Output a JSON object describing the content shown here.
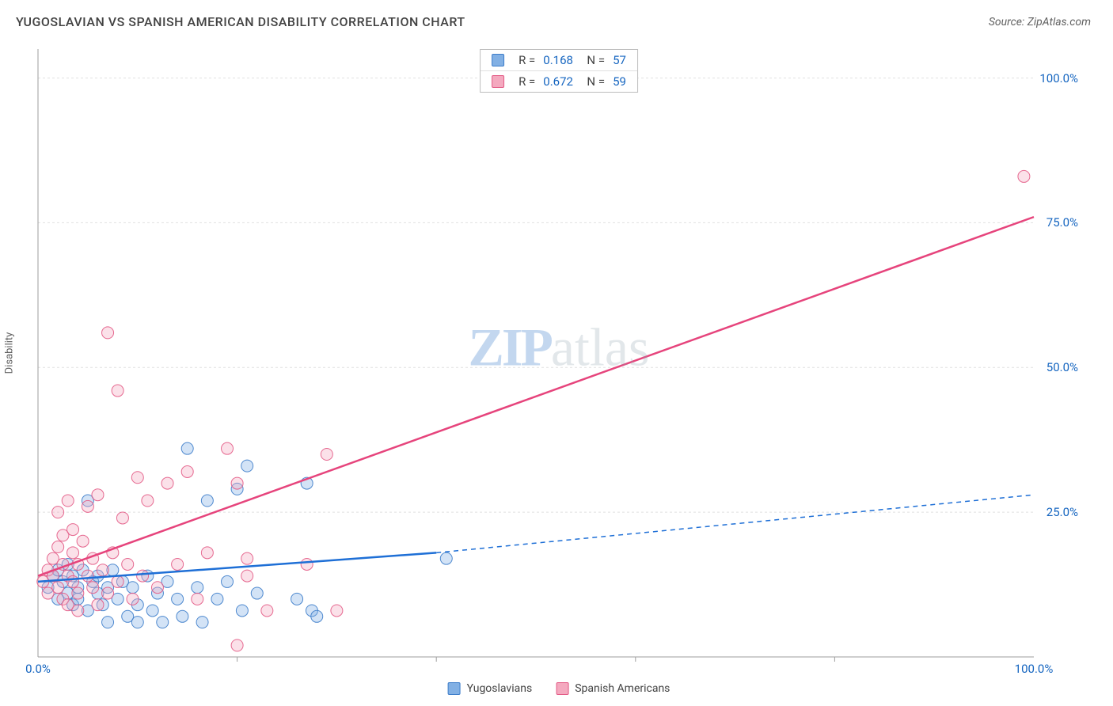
{
  "title": "YUGOSLAVIAN VS SPANISH AMERICAN DISABILITY CORRELATION CHART",
  "source": "Source: ZipAtlas.com",
  "ylabel": "Disability",
  "watermark_a": "ZIP",
  "watermark_b": "atlas",
  "chart": {
    "type": "scatter",
    "xlim": [
      0,
      100
    ],
    "ylim": [
      0,
      105
    ],
    "xtick_labels": [
      "0.0%",
      "100.0%"
    ],
    "xtick_positions": [
      0,
      100
    ],
    "xtick_minor": [
      20,
      40,
      60,
      80
    ],
    "ytick_labels": [
      "25.0%",
      "50.0%",
      "75.0%",
      "100.0%"
    ],
    "ytick_positions": [
      25,
      50,
      75,
      100
    ],
    "background_color": "#ffffff",
    "grid_color": "#e0e0e0",
    "axis_color": "#9e9e9e",
    "marker_radius": 7.5,
    "marker_opacity": 0.35,
    "marker_stroke_opacity": 0.9,
    "line_width": 2.5,
    "label_color": "#1565c0",
    "label_fontsize": 15,
    "series": [
      {
        "name": "Yugoslavians",
        "color": "#82b0e4",
        "stroke": "#3d7dca",
        "line_color": "#1e6fd6",
        "R": "0.168",
        "N": "57",
        "trend": {
          "x1": 0,
          "y1": 13,
          "x2_solid": 40,
          "y2_solid": 18,
          "x2": 100,
          "y2": 28
        },
        "points": [
          [
            1,
            12
          ],
          [
            1.5,
            14
          ],
          [
            2,
            10
          ],
          [
            2,
            15
          ],
          [
            2.5,
            13
          ],
          [
            3,
            11
          ],
          [
            3,
            16
          ],
          [
            3.5,
            9
          ],
          [
            3.5,
            14
          ],
          [
            4,
            12
          ],
          [
            4,
            10
          ],
          [
            4.5,
            15
          ],
          [
            5,
            8
          ],
          [
            5,
            27
          ],
          [
            5.5,
            13
          ],
          [
            6,
            11
          ],
          [
            6,
            14
          ],
          [
            6.5,
            9
          ],
          [
            7,
            12
          ],
          [
            7,
            6
          ],
          [
            7.5,
            15
          ],
          [
            8,
            10
          ],
          [
            8.5,
            13
          ],
          [
            9,
            7
          ],
          [
            9.5,
            12
          ],
          [
            10,
            9
          ],
          [
            10,
            6
          ],
          [
            11,
            14
          ],
          [
            11.5,
            8
          ],
          [
            12,
            11
          ],
          [
            12.5,
            6
          ],
          [
            13,
            13
          ],
          [
            14,
            10
          ],
          [
            14.5,
            7
          ],
          [
            15,
            36
          ],
          [
            16,
            12
          ],
          [
            16.5,
            6
          ],
          [
            17,
            27
          ],
          [
            18,
            10
          ],
          [
            19,
            13
          ],
          [
            20,
            29
          ],
          [
            20.5,
            8
          ],
          [
            21,
            33
          ],
          [
            22,
            11
          ],
          [
            26,
            10
          ],
          [
            27,
            30
          ],
          [
            27.5,
            8
          ],
          [
            28,
            7
          ],
          [
            41,
            17
          ]
        ]
      },
      {
        "name": "Spanish Americans",
        "color": "#f4a9bf",
        "stroke": "#e35a85",
        "line_color": "#e6447c",
        "R": "0.672",
        "N": "59",
        "trend": {
          "x1": 0,
          "y1": 14,
          "x2_solid": 100,
          "y2_solid": 76,
          "x2": 100,
          "y2": 76
        },
        "points": [
          [
            0.5,
            13
          ],
          [
            1,
            15
          ],
          [
            1,
            11
          ],
          [
            1.5,
            17
          ],
          [
            1.5,
            14
          ],
          [
            2,
            25
          ],
          [
            2,
            12
          ],
          [
            2,
            19
          ],
          [
            2.5,
            10
          ],
          [
            2.5,
            16
          ],
          [
            2.5,
            21
          ],
          [
            3,
            14
          ],
          [
            3,
            9
          ],
          [
            3,
            27
          ],
          [
            3.5,
            18
          ],
          [
            3.5,
            13
          ],
          [
            3.5,
            22
          ],
          [
            4,
            8
          ],
          [
            4,
            16
          ],
          [
            4,
            11
          ],
          [
            4.5,
            20
          ],
          [
            5,
            14
          ],
          [
            5,
            26
          ],
          [
            5.5,
            12
          ],
          [
            5.5,
            17
          ],
          [
            6,
            9
          ],
          [
            6,
            28
          ],
          [
            6.5,
            15
          ],
          [
            7,
            11
          ],
          [
            7,
            56
          ],
          [
            7.5,
            18
          ],
          [
            8,
            13
          ],
          [
            8,
            46
          ],
          [
            8.5,
            24
          ],
          [
            9,
            16
          ],
          [
            9.5,
            10
          ],
          [
            10,
            31
          ],
          [
            10.5,
            14
          ],
          [
            11,
            27
          ],
          [
            12,
            12
          ],
          [
            13,
            30
          ],
          [
            14,
            16
          ],
          [
            15,
            32
          ],
          [
            16,
            10
          ],
          [
            17,
            18
          ],
          [
            19,
            36
          ],
          [
            20,
            30
          ],
          [
            20,
            2
          ],
          [
            21,
            14
          ],
          [
            21,
            17
          ],
          [
            23,
            8
          ],
          [
            27,
            16
          ],
          [
            29,
            35
          ],
          [
            30,
            8
          ],
          [
            99,
            83
          ]
        ]
      }
    ],
    "legend_labels": [
      "Yugoslavians",
      "Spanish Americans"
    ]
  }
}
